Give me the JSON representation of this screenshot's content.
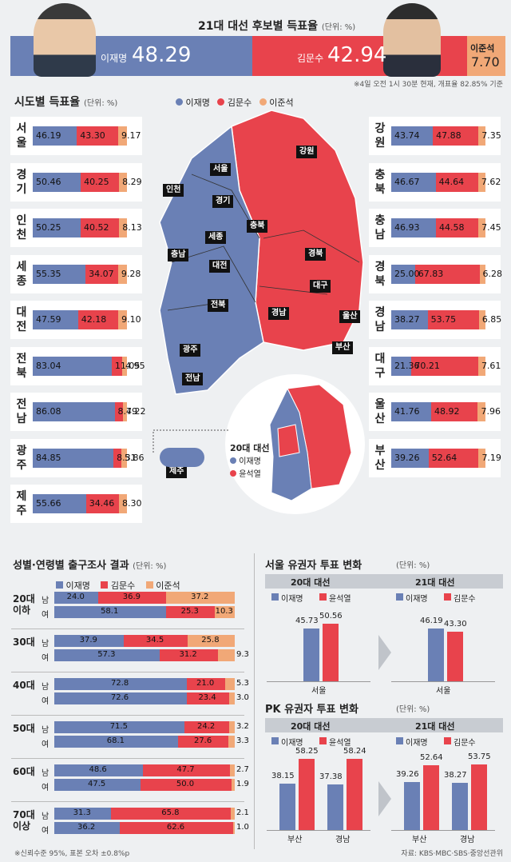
{
  "header": {
    "title": "21대 대선 후보별 득표율",
    "unit": "(단위: %)",
    "note": "※4일 오전 1시 30분 현재, 개표율 82.85% 기준"
  },
  "colors": {
    "lee": "#6a80b5",
    "kim": "#e8434c",
    "lee_jun": "#f1a877",
    "bg": "#eef0f2"
  },
  "totals": [
    {
      "name": "이재명",
      "value": "48.29",
      "pct": 48.29
    },
    {
      "name": "김문수",
      "value": "42.94",
      "pct": 42.94
    },
    {
      "name": "이준석",
      "value": "7.70",
      "pct": 7.7
    }
  ],
  "regional": {
    "title": "시도별 득표율",
    "unit": "(단위: %)",
    "legend": [
      "이재명",
      "김문수",
      "이준석"
    ]
  },
  "map": {
    "labels": [
      "서울",
      "인천",
      "경기",
      "강원",
      "충북",
      "세종",
      "충남",
      "대전",
      "경북",
      "대구",
      "울산",
      "전북",
      "경남",
      "부산",
      "광주",
      "전남",
      "제주"
    ],
    "inset_title": "20대 대선",
    "inset_legend": [
      "이재명",
      "윤석열"
    ]
  },
  "exit_poll": {
    "title": "성별·연령별 출구조사 결과",
    "unit": "(단위: %)",
    "legend": [
      "이재명",
      "김문수",
      "이준석"
    ],
    "genders": [
      "남",
      "여"
    ],
    "footnote": "※신뢰수준 95%, 표본 오차 ±0.8%p"
  },
  "seoul_change": {
    "title": "서울 유권자 투표 변화",
    "unit": "(단위: %)",
    "left_header": "20대 대선",
    "right_header": "21대 대선",
    "left_legend": [
      "이재명",
      "윤석열"
    ],
    "right_legend": [
      "이재명",
      "김문수"
    ],
    "left": {
      "categories": [
        "서울"
      ],
      "a": [
        "45.73"
      ],
      "b": [
        "50.56"
      ]
    },
    "right": {
      "categories": [
        "서울"
      ],
      "a": [
        "46.19"
      ],
      "b": [
        "43.30"
      ]
    }
  },
  "pk_change": {
    "title": "PK 유권자 투표 변화",
    "unit": "(단위: %)",
    "left_header": "20대 대선",
    "right_header": "21대 대선",
    "left_legend": [
      "이재명",
      "윤석열"
    ],
    "right_legend": [
      "이재명",
      "김문수"
    ],
    "left": {
      "categories": [
        "부산",
        "경남"
      ],
      "a": [
        "38.15",
        "37.38"
      ],
      "b": [
        "58.25",
        "58.24"
      ]
    },
    "right": {
      "categories": [
        "부산",
        "경남"
      ],
      "a": [
        "39.26",
        "38.27"
      ],
      "b": [
        "52.64",
        "53.75"
      ]
    }
  },
  "source": "자료: KBS·MBC·SBS·중앙선관위",
  "chart_data": [
    {
      "type": "bar",
      "title": "시도별 득표율",
      "stacked": true,
      "categories": [
        "서울",
        "경기",
        "인천",
        "세종",
        "대전",
        "전북",
        "전남",
        "광주",
        "제주",
        "강원",
        "충북",
        "충남",
        "경북",
        "경남",
        "대구",
        "울산",
        "부산"
      ],
      "series": [
        {
          "name": "이재명",
          "values": [
            "46.19",
            "50.46",
            "50.25",
            "55.35",
            "47.59",
            "83.04",
            "86.08",
            "84.85",
            "55.66",
            "43.74",
            "46.67",
            "46.93",
            "25.00",
            "38.27",
            "21.36",
            "41.76",
            "39.26"
          ]
        },
        {
          "name": "김문수",
          "values": [
            "43.30",
            "40.25",
            "40.52",
            "34.07",
            "42.18",
            "11.05",
            "8.79",
            "8.31",
            "34.46",
            "47.88",
            "44.64",
            "44.58",
            "67.83",
            "53.75",
            "70.21",
            "48.92",
            "52.64"
          ]
        },
        {
          "name": "이준석",
          "values": [
            "9.17",
            "8.29",
            "8.13",
            "9.28",
            "9.10",
            "4.95",
            "4.22",
            "5.86",
            "8.30",
            "7.35",
            "7.62",
            "7.45",
            "6.28",
            "6.85",
            "7.61",
            "7.96",
            "7.19"
          ]
        }
      ]
    },
    {
      "type": "bar",
      "title": "성별·연령별 출구조사 결과",
      "stacked": true,
      "groups": [
        "20대 이하",
        "30대",
        "40대",
        "50대",
        "60대",
        "70대 이상"
      ],
      "categories": [
        "20대 이하 남",
        "20대 이하 여",
        "30대 남",
        "30대 여",
        "40대 남",
        "40대 여",
        "50대 남",
        "50대 여",
        "60대 남",
        "60대 여",
        "70대 이상 남",
        "70대 이상 여"
      ],
      "series": [
        {
          "name": "이재명",
          "values": [
            "24.0",
            "58.1",
            "37.9",
            "57.3",
            "72.8",
            "72.6",
            "71.5",
            "68.1",
            "48.6",
            "47.5",
            "31.3",
            "36.2"
          ]
        },
        {
          "name": "김문수",
          "values": [
            "36.9",
            "25.3",
            "34.5",
            "31.2",
            "21.0",
            "23.4",
            "24.2",
            "27.6",
            "47.7",
            "50.0",
            "65.8",
            "62.6"
          ]
        },
        {
          "name": "이준석",
          "values": [
            "37.2",
            "10.3",
            "25.8",
            "9.3",
            "5.3",
            "3.0",
            "3.2",
            "3.3",
            "2.7",
            "1.9",
            "2.1",
            "1.0"
          ]
        }
      ]
    }
  ]
}
